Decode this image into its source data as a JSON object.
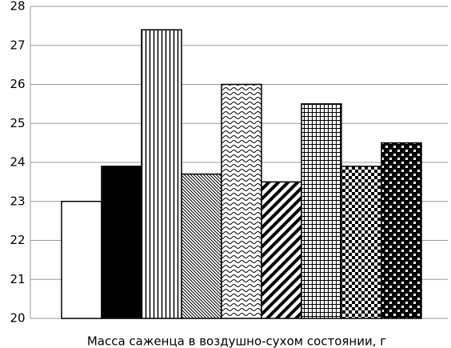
{
  "chart_data": {
    "type": "bar",
    "x_label": "Масса саженца в воздушно-сухом состоянии, г",
    "categories": [
      null,
      null,
      null,
      null,
      null,
      null,
      null,
      null,
      null
    ],
    "values": [
      23,
      23.9,
      27.4,
      23.7,
      26,
      23.5,
      25.5,
      23.9,
      24.5
    ],
    "patterns": [
      "white",
      "black",
      "vertical-lines",
      "thin-diagonal",
      "waves",
      "thick-diagonal",
      "grid",
      "checker",
      "dots"
    ],
    "ylim": [
      20,
      28
    ],
    "yticks": [
      20,
      21,
      22,
      23,
      24,
      25,
      26,
      27,
      28
    ],
    "grid": true
  }
}
